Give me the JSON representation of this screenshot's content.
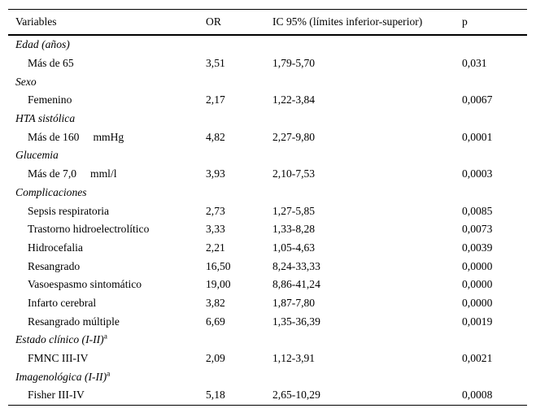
{
  "page": {
    "background_color": "#ffffff",
    "text_color": "#000000",
    "rule_color": "#000000"
  },
  "table": {
    "header": {
      "variables": "Variables",
      "or": "OR",
      "ic": "IC 95% (límites inferior-superior)",
      "p": "p"
    },
    "rows": [
      {
        "type": "group",
        "label": "Edad (años)",
        "sup": "",
        "unit": "",
        "or": "",
        "ic": "",
        "p": ""
      },
      {
        "type": "item",
        "label": "Más de 65",
        "sup": "",
        "unit": "",
        "or": "3,51",
        "ic": "1,79-5,70",
        "p": "0,031"
      },
      {
        "type": "group",
        "label": "Sexo",
        "sup": "",
        "unit": "",
        "or": "",
        "ic": "",
        "p": ""
      },
      {
        "type": "item",
        "label": "Femenino",
        "sup": "",
        "unit": "",
        "or": "2,17",
        "ic": "1,22-3,84",
        "p": "0,0067"
      },
      {
        "type": "group",
        "label": "HTA sistólica",
        "sup": "",
        "unit": "",
        "or": "",
        "ic": "",
        "p": ""
      },
      {
        "type": "item",
        "label": "Más de 160",
        "sup": "",
        "unit": "mmHg",
        "or": "4,82",
        "ic": "2,27-9,80",
        "p": "0,0001"
      },
      {
        "type": "group",
        "label": "Glucemia",
        "sup": "",
        "unit": "",
        "or": "",
        "ic": "",
        "p": ""
      },
      {
        "type": "item",
        "label": "Más de 7,0",
        "sup": "",
        "unit": "mml/l",
        "or": "3,93",
        "ic": "2,10-7,53",
        "p": "0,0003"
      },
      {
        "type": "group",
        "label": "Complicaciones",
        "sup": "",
        "unit": "",
        "or": "",
        "ic": "",
        "p": ""
      },
      {
        "type": "item",
        "label": "Sepsis respiratoria",
        "sup": "",
        "unit": "",
        "or": "2,73",
        "ic": "1,27-5,85",
        "p": "0,0085"
      },
      {
        "type": "item",
        "label": "Trastorno hidroelectrolítico",
        "sup": "",
        "unit": "",
        "or": "3,33",
        "ic": "1,33-8,28",
        "p": "0,0073"
      },
      {
        "type": "item",
        "label": "Hidrocefalia",
        "sup": "",
        "unit": "",
        "or": "2,21",
        "ic": "1,05-4,63",
        "p": "0,0039"
      },
      {
        "type": "item",
        "label": "Resangrado",
        "sup": "",
        "unit": "",
        "or": "16,50",
        "ic": "8,24-33,33",
        "p": "0,0000"
      },
      {
        "type": "item",
        "label": "Vasoespasmo sintomático",
        "sup": "",
        "unit": "",
        "or": "19,00",
        "ic": "8,86-41,24",
        "p": "0,0000"
      },
      {
        "type": "item",
        "label": "Infarto cerebral",
        "sup": "",
        "unit": "",
        "or": "3,82",
        "ic": "1,87-7,80",
        "p": "0,0000"
      },
      {
        "type": "item",
        "label": "Resangrado múltiple",
        "sup": "",
        "unit": "",
        "or": "6,69",
        "ic": "1,35-36,39",
        "p": "0,0019"
      },
      {
        "type": "group",
        "label": "Estado clínico (I-II)",
        "sup": "a",
        "unit": "",
        "or": "",
        "ic": "",
        "p": ""
      },
      {
        "type": "item",
        "label": "FMNC III-IV",
        "sup": "",
        "unit": "",
        "or": "2,09",
        "ic": "1,12-3,91",
        "p": "0,0021"
      },
      {
        "type": "group",
        "label": "Imagenológica (I-II)",
        "sup": "a",
        "unit": "",
        "or": "",
        "ic": "",
        "p": ""
      },
      {
        "type": "item",
        "label": "Fisher III-IV",
        "sup": "",
        "unit": "",
        "or": "5,18",
        "ic": "2,65-10,29",
        "p": "0,0008"
      }
    ]
  }
}
